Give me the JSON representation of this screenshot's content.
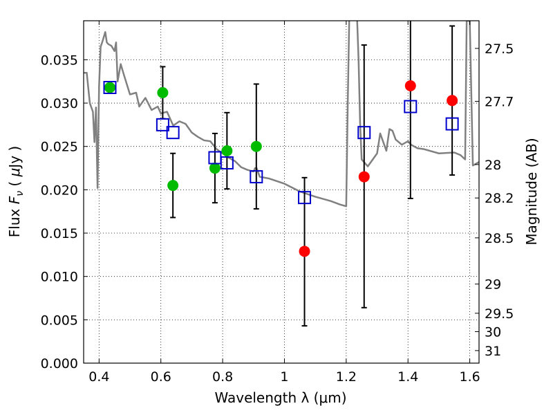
{
  "chart_data": {
    "type": "scatter",
    "xlim": [
      0.35,
      1.63
    ],
    "ylim": [
      0.0,
      0.0395
    ],
    "grid": true,
    "x_ticks": [
      0.4,
      0.6,
      0.8,
      1.0,
      1.2,
      1.4,
      1.6
    ],
    "x_tick_labels": [
      "0.4",
      "0.6",
      "0.8",
      "1",
      "1.2",
      "1.4",
      "1.6"
    ],
    "y_ticks": [
      0.0,
      0.005,
      0.01,
      0.015,
      0.02,
      0.025,
      0.03,
      0.035
    ],
    "y_tick_labels": [
      "0.000",
      "0.005",
      "0.010",
      "0.015",
      "0.020",
      "0.025",
      "0.030",
      "0.035"
    ],
    "xlabel": "Wavelength  λ (μm)",
    "ylabel_parts": [
      "Flux  ",
      "F",
      "ν",
      "  ( ",
      "μ",
      "Jy )"
    ],
    "ylabel_right": "Magnitude (AB)",
    "right_axis": {
      "scale": "AB magnitude",
      "ticks": [
        27.5,
        27.7,
        28,
        28.2,
        28.5,
        29,
        29.5,
        30,
        31
      ],
      "tick_labels": [
        "27.5",
        "27.7",
        "28",
        "28.2",
        "28.5",
        "29",
        "29.5",
        "30",
        "31"
      ]
    },
    "series": [
      {
        "marker": "circle",
        "color": "#00bb00",
        "x": [
          0.435,
          0.606,
          0.639,
          0.775,
          0.814,
          0.909
        ],
        "y": [
          0.0318,
          0.0312,
          0.0205,
          0.0225,
          0.0245,
          0.025
        ],
        "err_low": [
          null,
          0.003,
          0.0037,
          0.004,
          0.0044,
          0.0072
        ],
        "err_high": [
          null,
          0.003,
          0.0037,
          0.004,
          0.0044,
          0.0072
        ]
      },
      {
        "marker": "circle",
        "color": "#ff0000",
        "x": [
          1.065,
          1.258,
          1.408,
          1.543
        ],
        "y": [
          0.0129,
          0.0215,
          0.032,
          0.0303
        ],
        "err_low": [
          null,
          null,
          null,
          null
        ],
        "err_high": [
          null,
          null,
          null,
          null
        ]
      },
      {
        "marker": "open-square",
        "color": "#0000cc",
        "x": [
          0.435,
          0.606,
          0.639,
          0.775,
          0.814,
          0.909,
          1.065,
          1.258,
          1.408,
          1.543
        ],
        "y": [
          0.0318,
          0.0275,
          0.0266,
          0.0237,
          0.0231,
          0.0215,
          0.0191,
          0.0266,
          0.0296,
          0.0276
        ],
        "err_low": [
          null,
          null,
          null,
          null,
          null,
          null,
          0.0148,
          0.0202,
          0.0106,
          0.0059
        ],
        "err_high": [
          null,
          null,
          null,
          null,
          null,
          null,
          0.0023,
          0.0101,
          0.0115,
          0.0113
        ]
      },
      {
        "type": "line",
        "color": "#808080",
        "x": [
          0.35,
          0.36,
          0.37,
          0.38,
          0.385,
          0.39,
          0.395,
          0.4,
          0.405,
          0.41,
          0.42,
          0.425,
          0.43,
          0.44,
          0.45,
          0.455,
          0.46,
          0.47,
          0.48,
          0.5,
          0.52,
          0.53,
          0.55,
          0.57,
          0.59,
          0.6,
          0.62,
          0.64,
          0.66,
          0.68,
          0.7,
          0.72,
          0.74,
          0.76,
          0.78,
          0.8,
          0.82,
          0.84,
          0.86,
          0.88,
          0.9,
          0.905,
          0.91,
          0.915,
          0.92,
          0.95,
          1.0,
          1.05,
          1.1,
          1.15,
          1.18,
          1.2,
          1.205,
          1.21,
          1.215,
          1.22,
          1.225,
          1.235,
          1.24,
          1.245,
          1.25,
          1.27,
          1.3,
          1.31,
          1.32,
          1.33,
          1.34,
          1.35,
          1.36,
          1.38,
          1.4,
          1.41,
          1.43,
          1.45,
          1.5,
          1.55,
          1.57,
          1.585,
          1.59,
          1.595,
          1.6,
          1.61,
          1.63
        ],
        "y": [
          0.0335,
          0.0335,
          0.03,
          0.029,
          0.0255,
          0.0295,
          0.0202,
          0.032,
          0.0365,
          0.037,
          0.0382,
          0.037,
          0.0368,
          0.0366,
          0.036,
          0.037,
          0.0325,
          0.0345,
          0.0333,
          0.031,
          0.0312,
          0.0296,
          0.0306,
          0.0292,
          0.0296,
          0.0288,
          0.029,
          0.0274,
          0.0279,
          0.0276,
          0.0266,
          0.0261,
          0.0257,
          0.0256,
          0.0247,
          0.0242,
          0.0237,
          0.0233,
          0.0226,
          0.0223,
          0.0221,
          0.0225,
          0.0225,
          0.022,
          0.0215,
          0.0213,
          0.0207,
          0.0198,
          0.0192,
          0.0187,
          0.0183,
          0.0181,
          0.03,
          0.04,
          0.04,
          0.04,
          0.04,
          0.04,
          0.035,
          0.0277,
          0.0235,
          0.0227,
          0.0242,
          0.0265,
          0.0255,
          0.0245,
          0.027,
          0.0268,
          0.0258,
          0.0252,
          0.0256,
          0.0252,
          0.0248,
          0.0247,
          0.0242,
          0.0243,
          0.024,
          0.0235,
          0.0395,
          0.0395,
          0.0395,
          0.0228,
          0.0232
        ]
      }
    ]
  }
}
